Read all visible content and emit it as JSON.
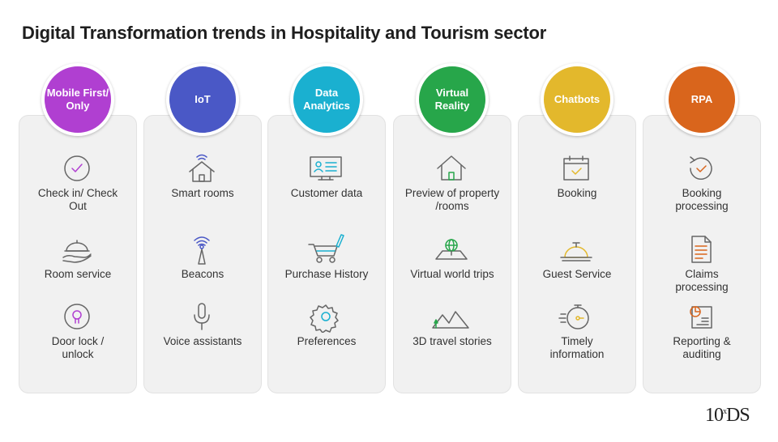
{
  "title": "Digital Transformation trends in Hospitality and Tourism sector",
  "logo": {
    "text": "10",
    "sup": "x",
    "suffix": "DS"
  },
  "columns": [
    {
      "name": "Mobile First/\nOnly",
      "color": "#b03fd1",
      "items": [
        {
          "label": "Check in/ Check\nOut",
          "icon": "check-circle-icon"
        },
        {
          "label": "Room service",
          "icon": "cloche-hand-icon"
        },
        {
          "label": "Door lock /\nunlock",
          "icon": "bulb-circle-icon"
        }
      ]
    },
    {
      "name": "IoT",
      "color": "#4a58c6",
      "items": [
        {
          "label": "Smart rooms",
          "icon": "wifi-house-icon"
        },
        {
          "label": "Beacons",
          "icon": "beacon-icon"
        },
        {
          "label": "Voice assistants",
          "icon": "microphone-icon"
        }
      ]
    },
    {
      "name": "Data\nAnalytics",
      "color": "#1ab0d0",
      "items": [
        {
          "label": "Customer data",
          "icon": "id-card-icon"
        },
        {
          "label": "Purchase History",
          "icon": "shopping-cart-icon"
        },
        {
          "label": "Preferences",
          "icon": "gear-icon"
        }
      ]
    },
    {
      "name": "Virtual\nReality",
      "color": "#27a64a",
      "items": [
        {
          "label": "Preview of property\n/rooms",
          "icon": "house-icon"
        },
        {
          "label": "Virtual world trips",
          "icon": "globe-map-icon"
        },
        {
          "label": "3D travel stories",
          "icon": "mountains-icon"
        }
      ]
    },
    {
      "name": "Chatbots",
      "color": "#e3b82c",
      "items": [
        {
          "label": "Booking",
          "icon": "calendar-check-icon"
        },
        {
          "label": "Guest Service",
          "icon": "service-bell-icon"
        },
        {
          "label": "Timely\ninformation",
          "icon": "stopwatch-icon"
        }
      ]
    },
    {
      "name": "RPA",
      "color": "#d9651c",
      "items": [
        {
          "label": "Booking\nprocessing",
          "icon": "refresh-check-icon"
        },
        {
          "label": "Claims\nprocessing",
          "icon": "document-icon"
        },
        {
          "label": "Reporting &\nauditing",
          "icon": "report-chart-icon"
        }
      ]
    }
  ]
}
